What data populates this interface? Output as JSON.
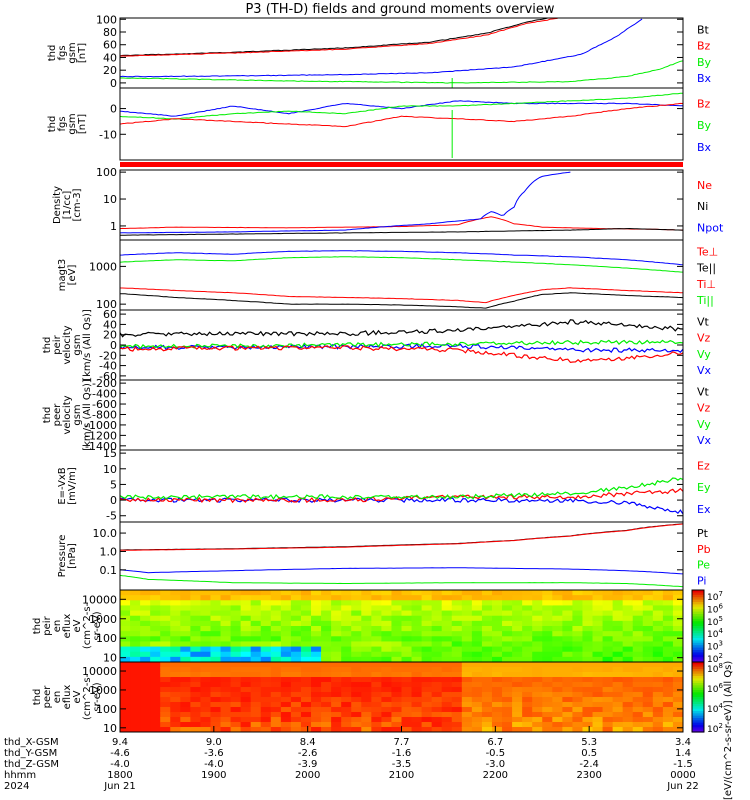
{
  "title": "P3 (TH-D) fields and ground moments overview",
  "colors": {
    "black": "#000000",
    "red": "#ff0000",
    "green": "#00ee00",
    "blue": "#0000ff"
  },
  "chart_data": [
    {
      "type": "line",
      "ylabel": [
        "thd",
        "fgs",
        "gsm",
        "[nT]"
      ],
      "yticks": [
        "100",
        "80",
        "60",
        "40",
        "20",
        "0"
      ],
      "ylim": [
        -8,
        102
      ],
      "legend": [
        {
          "text": "Bt",
          "color": "black"
        },
        {
          "text": "Bz",
          "color": "red"
        },
        {
          "text": "By",
          "color": "green"
        },
        {
          "text": "Bx",
          "color": "blue"
        }
      ],
      "series": [
        {
          "color": "black",
          "x": [
            0,
            0.2,
            0.4,
            0.55,
            0.65,
            0.72,
            0.76
          ],
          "y": [
            43,
            48,
            55,
            64,
            78,
            95,
            102
          ]
        },
        {
          "color": "red",
          "x": [
            0,
            0.2,
            0.4,
            0.55,
            0.65,
            0.72,
            0.78
          ],
          "y": [
            42,
            47,
            53,
            62,
            75,
            93,
            102
          ]
        },
        {
          "color": "blue",
          "x": [
            0,
            0.2,
            0.4,
            0.55,
            0.7,
            0.82,
            0.88,
            0.93
          ],
          "y": [
            10,
            11,
            13,
            16,
            25,
            45,
            72,
            102
          ]
        },
        {
          "color": "green",
          "x": [
            0,
            0.3,
            0.6,
            0.8,
            0.9,
            0.96,
            1.0
          ],
          "y": [
            8,
            3,
            0,
            2,
            10,
            22,
            35
          ]
        }
      ]
    },
    {
      "type": "line",
      "ylabel": [
        "thd",
        "fgs",
        "gsm",
        "[nT]"
      ],
      "yticks": [
        "0",
        "-10"
      ],
      "ylim": [
        -20,
        8
      ],
      "legend": [
        {
          "text": "Bz",
          "color": "red"
        },
        {
          "text": "By",
          "color": "green"
        },
        {
          "text": "Bx",
          "color": "blue"
        }
      ],
      "series": [
        {
          "color": "blue",
          "x": [
            0,
            0.1,
            0.2,
            0.3,
            0.4,
            0.5,
            0.6,
            0.7,
            0.8,
            0.9,
            1.0
          ],
          "y": [
            -1,
            -3,
            1,
            -2,
            2,
            0,
            3,
            2,
            2,
            2,
            1
          ]
        },
        {
          "color": "green",
          "x": [
            0,
            0.1,
            0.2,
            0.3,
            0.4,
            0.5,
            0.6,
            0.7,
            0.8,
            0.9,
            1.0
          ],
          "y": [
            -3,
            -4,
            -2,
            -1,
            -2,
            1,
            1,
            2,
            3,
            4,
            6
          ]
        },
        {
          "color": "red",
          "x": [
            0,
            0.1,
            0.2,
            0.3,
            0.4,
            0.5,
            0.6,
            0.7,
            0.8,
            0.9,
            1.0
          ],
          "y": [
            -6,
            -4,
            -5,
            -6,
            -7,
            -3,
            -4,
            -5,
            -3,
            0,
            2
          ]
        }
      ]
    },
    {
      "type": "line",
      "ylabel": [
        "Density",
        "[1/cc]",
        "[cm-3]"
      ],
      "yticks": [
        "100",
        "10",
        "1"
      ],
      "log": true,
      "ylim": [
        0.3,
        120
      ],
      "legend": [
        {
          "text": "Ne",
          "color": "red"
        },
        {
          "text": "Ni",
          "color": "black"
        },
        {
          "text": "Npot",
          "color": "blue"
        }
      ],
      "series": [
        {
          "color": "red",
          "x": [
            0,
            0.1,
            0.3,
            0.5,
            0.6,
            0.66,
            0.7,
            0.75,
            0.85,
            0.95,
            1.0
          ],
          "y": [
            0.8,
            0.9,
            0.85,
            0.95,
            1.1,
            2.2,
            1.2,
            0.9,
            0.8,
            0.75,
            0.7
          ]
        },
        {
          "color": "black",
          "x": [
            0,
            0.2,
            0.4,
            0.6,
            0.8,
            0.9,
            1.0
          ],
          "y": [
            0.45,
            0.5,
            0.55,
            0.6,
            0.7,
            0.8,
            0.7
          ]
        },
        {
          "color": "blue",
          "x": [
            0,
            0.2,
            0.4,
            0.55,
            0.64,
            0.66,
            0.68,
            0.7,
            0.72,
            0.75,
            0.8
          ],
          "y": [
            0.55,
            0.6,
            0.7,
            1.2,
            1.8,
            3.5,
            2.3,
            5,
            20,
            70,
            100
          ]
        }
      ]
    },
    {
      "type": "line",
      "ylabel": [
        "magt3",
        "[eV]"
      ],
      "yticks": [
        "1000",
        "100"
      ],
      "log": true,
      "ylim": [
        70,
        5000
      ],
      "legend": [
        {
          "text": "Te⊥",
          "color": "red"
        },
        {
          "text": "Te||",
          "color": "black"
        },
        {
          "text": "Ti⊥",
          "color": "red"
        },
        {
          "text": "Ti||",
          "color": "green"
        }
      ],
      "series": [
        {
          "color": "blue",
          "x": [
            0,
            0.1,
            0.2,
            0.3,
            0.4,
            0.5,
            0.6,
            0.7,
            0.8,
            0.9,
            1.0
          ],
          "y": [
            2000,
            2300,
            2100,
            2500,
            2600,
            2500,
            2300,
            2000,
            1800,
            1500,
            1100
          ]
        },
        {
          "color": "green",
          "x": [
            0,
            0.1,
            0.2,
            0.3,
            0.4,
            0.5,
            0.6,
            0.7,
            0.8,
            0.9,
            1.0
          ],
          "y": [
            1300,
            1500,
            1400,
            1700,
            1800,
            1700,
            1500,
            1300,
            1100,
            900,
            700
          ]
        },
        {
          "color": "red",
          "x": [
            0,
            0.1,
            0.2,
            0.3,
            0.4,
            0.5,
            0.6,
            0.65,
            0.7,
            0.75,
            0.8,
            0.9,
            1.0
          ],
          "y": [
            270,
            230,
            200,
            160,
            150,
            140,
            125,
            110,
            170,
            240,
            270,
            230,
            200
          ]
        },
        {
          "color": "black",
          "x": [
            0,
            0.1,
            0.2,
            0.3,
            0.4,
            0.5,
            0.6,
            0.65,
            0.7,
            0.75,
            0.8,
            0.9,
            1.0
          ],
          "y": [
            190,
            150,
            125,
            100,
            100,
            95,
            85,
            78,
            120,
            180,
            200,
            170,
            150
          ]
        }
      ]
    },
    {
      "type": "line",
      "ylabel": [
        "thd",
        "peir",
        "velocity",
        "gsm",
        "[km/s (All Qs)]"
      ],
      "yticks": [
        "60",
        "40",
        "20",
        "0",
        "-20",
        "-40",
        "-60"
      ],
      "ylim": [
        -68,
        68
      ],
      "legend": [
        {
          "text": "Vt",
          "color": "black"
        },
        {
          "text": "Vz",
          "color": "red"
        },
        {
          "text": "Vy",
          "color": "green"
        },
        {
          "text": "Vx",
          "color": "blue"
        }
      ],
      "series": [
        {
          "color": "blue",
          "x": [
            0,
            0.2,
            0.4,
            0.6,
            0.8,
            1.0
          ],
          "y": [
            -5,
            -5,
            -3,
            -2,
            -10,
            -10
          ]
        },
        {
          "color": "green",
          "x": [
            0,
            0.2,
            0.4,
            0.6,
            0.8,
            1.0
          ],
          "y": [
            -3,
            -2,
            0,
            2,
            5,
            5
          ]
        },
        {
          "color": "red",
          "x": [
            0,
            0.2,
            0.4,
            0.6,
            0.7,
            0.8,
            0.9,
            1.0
          ],
          "y": [
            -8,
            -6,
            -5,
            -10,
            -20,
            -30,
            -25,
            -15
          ]
        },
        {
          "color": "black",
          "x": [
            0,
            0.2,
            0.4,
            0.6,
            0.7,
            0.8,
            0.9,
            1.0
          ],
          "y": [
            20,
            22,
            22,
            28,
            35,
            45,
            40,
            30
          ]
        }
      ]
    },
    {
      "type": "line",
      "ylabel": [
        "thd",
        "peer",
        "velocity",
        "gsm",
        "[km/s (All Qs)]"
      ],
      "yticks": [
        "-200",
        "-400",
        "-600",
        "-800",
        "-1000",
        "-1200",
        "-1400"
      ],
      "ylim": [
        -1480,
        -140
      ],
      "legend": [
        {
          "text": "Vt",
          "color": "black"
        },
        {
          "text": "Vz",
          "color": "red"
        },
        {
          "text": "Vy",
          "color": "green"
        },
        {
          "text": "Vx",
          "color": "blue"
        }
      ],
      "series": []
    },
    {
      "type": "line",
      "ylabel": [
        "E=-VxB",
        "[mV/m]"
      ],
      "yticks": [
        "15",
        "10",
        "5",
        "0",
        "-5"
      ],
      "ylim": [
        -7,
        16
      ],
      "legend": [
        {
          "text": "Ez",
          "color": "red"
        },
        {
          "text": "Ey",
          "color": "green"
        },
        {
          "text": "Ex",
          "color": "blue"
        }
      ],
      "series": [
        {
          "color": "blue",
          "x": [
            0,
            0.2,
            0.4,
            0.6,
            0.8,
            0.9,
            1.0
          ],
          "y": [
            0,
            0,
            0,
            0,
            0,
            -1,
            -4
          ]
        },
        {
          "color": "red",
          "x": [
            0,
            0.2,
            0.4,
            0.6,
            0.8,
            0.9,
            1.0
          ],
          "y": [
            0,
            0,
            0,
            1,
            1,
            2,
            3
          ]
        },
        {
          "color": "green",
          "x": [
            0,
            0.2,
            0.4,
            0.6,
            0.8,
            0.9,
            1.0
          ],
          "y": [
            1,
            1,
            1,
            1,
            2,
            4,
            7
          ]
        }
      ]
    },
    {
      "type": "line",
      "ylabel": [
        "Pressure",
        "[nPa]"
      ],
      "yticks": [
        "10.0",
        "1.0",
        "0.1"
      ],
      "log": true,
      "ylim": [
        0.008,
        40
      ],
      "legend": [
        {
          "text": "Pt",
          "color": "black"
        },
        {
          "text": "Pb",
          "color": "red"
        },
        {
          "text": "Pe",
          "color": "green"
        },
        {
          "text": "Pi",
          "color": "blue"
        }
      ],
      "series": [
        {
          "color": "black",
          "x": [
            0,
            0.2,
            0.4,
            0.6,
            0.7,
            0.8,
            0.9,
            1.0
          ],
          "y": [
            1.2,
            1.4,
            1.8,
            2.7,
            4,
            7,
            14,
            32
          ]
        },
        {
          "color": "red",
          "x": [
            0,
            0.2,
            0.4,
            0.6,
            0.7,
            0.8,
            0.9,
            1.0
          ],
          "y": [
            1.15,
            1.35,
            1.7,
            2.6,
            3.9,
            6.8,
            13.5,
            31
          ]
        },
        {
          "color": "blue",
          "x": [
            0,
            0.05,
            0.2,
            0.4,
            0.6,
            0.8,
            0.9,
            1.0
          ],
          "y": [
            0.1,
            0.07,
            0.09,
            0.12,
            0.13,
            0.11,
            0.09,
            0.06
          ]
        },
        {
          "color": "green",
          "x": [
            0,
            0.05,
            0.2,
            0.4,
            0.6,
            0.8,
            0.9,
            1.0
          ],
          "y": [
            0.05,
            0.03,
            0.02,
            0.018,
            0.02,
            0.02,
            0.018,
            0.012
          ]
        }
      ]
    },
    {
      "type": "heatmap",
      "ylabel": [
        "thd",
        "peir",
        "en",
        "eflux",
        "eV",
        "(cm^2-s-",
        "sr-eV)"
      ],
      "yticks": [
        "10000",
        "1000",
        "100",
        "10"
      ],
      "log": true,
      "ylim": [
        6,
        30000
      ],
      "colorbar_ticks": [
        "10^7",
        "10^6",
        "10^5",
        "10^4",
        "10^3",
        "10^2"
      ]
    },
    {
      "type": "heatmap",
      "ylabel": [
        "thd",
        "peer",
        "en",
        "eflux",
        "eV",
        "(cm^2-s-",
        "sr-eV)"
      ],
      "yticks": [
        "10000",
        "1000",
        "100",
        "10"
      ],
      "log": true,
      "ylim": [
        6,
        30000
      ],
      "colorbar_ticks": [
        "10^8",
        "10^6",
        "10^4",
        "10^2"
      ]
    }
  ],
  "colorbar_label": "[eV/(cm^2-s-sr-eV)] (All Qs)",
  "xaxis": {
    "row_labels": [
      "thd_X-GSM",
      "thd_Y-GSM",
      "thd_Z-GSM",
      "hhmm",
      "2024"
    ],
    "columns": [
      [
        "9.4",
        "-4.6",
        "-4.0",
        "1800",
        "Jun 21"
      ],
      [
        "9.0",
        "-3.6",
        "-4.0",
        "1900",
        ""
      ],
      [
        "8.4",
        "-2.6",
        "-3.9",
        "2000",
        ""
      ],
      [
        "7.7",
        "-1.6",
        "-3.5",
        "2100",
        ""
      ],
      [
        "6.7",
        "-0.5",
        "-3.0",
        "2200",
        ""
      ],
      [
        "5.3",
        "0.5",
        "-2.4",
        "2300",
        ""
      ],
      [
        "3.4",
        "1.4",
        "-1.5",
        "0000",
        "Jun 22"
      ]
    ]
  }
}
